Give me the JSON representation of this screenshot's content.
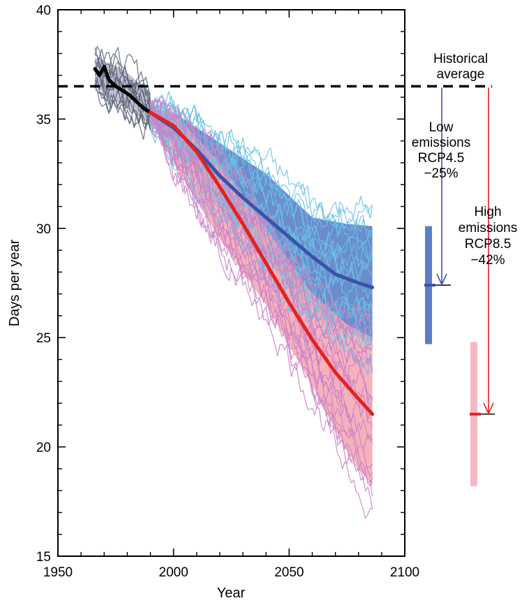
{
  "chart_data": {
    "type": "line",
    "xlabel": "Year",
    "ylabel": "Days per year",
    "xlim": [
      1950,
      2100
    ],
    "ylim": [
      15,
      40
    ],
    "x_ticks": [
      "1950",
      "2000",
      "2050",
      "2100"
    ],
    "y_ticks": [
      "15",
      "20",
      "25",
      "30",
      "35",
      "40"
    ],
    "historical_average": 36.5,
    "series": [
      {
        "key": "observed",
        "color": "#000000",
        "x": [
          1966,
          1968,
          1970,
          1972,
          1975,
          1978,
          1981,
          1984,
          1987,
          1990
        ],
        "y": [
          37.3,
          37.0,
          37.4,
          36.8,
          36.5,
          36.3,
          36.1,
          35.8,
          35.5,
          35.3
        ]
      },
      {
        "key": "rcp45_mean",
        "color": "#3a52a8",
        "x": [
          1990,
          2000,
          2010,
          2020,
          2030,
          2040,
          2050,
          2060,
          2070,
          2080,
          2086
        ],
        "y": [
          35.3,
          34.6,
          33.6,
          32.4,
          31.4,
          30.5,
          29.6,
          28.7,
          27.9,
          27.5,
          27.3
        ]
      },
      {
        "key": "rcp85_mean",
        "color": "#e52020",
        "x": [
          1990,
          2000,
          2010,
          2020,
          2030,
          2040,
          2050,
          2060,
          2070,
          2080,
          2086
        ],
        "y": [
          35.3,
          34.7,
          33.5,
          31.9,
          30.2,
          28.4,
          26.6,
          24.9,
          23.4,
          22.2,
          21.5
        ]
      }
    ],
    "ensembles": [
      {
        "key": "historical_models",
        "color": "#5b6478",
        "x": [
          1966,
          1990
        ]
      },
      {
        "key": "rcp45_models",
        "color": "#6ac3e6",
        "x": [
          1990,
          2086
        ]
      },
      {
        "key": "rcp85_models",
        "color": "#c983c7",
        "x": [
          1990,
          2086
        ]
      }
    ],
    "ranges": [
      {
        "key": "rcp45_range",
        "color": "#5b80c8",
        "x": [
          1990,
          2000,
          2020,
          2040,
          2060,
          2075,
          2086
        ],
        "upper": [
          35.5,
          35.3,
          33.9,
          32.5,
          30.5,
          30.2,
          30.1
        ],
        "lower": [
          35.0,
          33.8,
          31.0,
          28.5,
          26.3,
          25.2,
          24.8
        ]
      },
      {
        "key": "rcp85_range",
        "color": "#f5a9b6",
        "x": [
          1990,
          2000,
          2020,
          2040,
          2060,
          2075,
          2086
        ],
        "upper": [
          35.5,
          35.3,
          33.0,
          30.0,
          27.0,
          25.6,
          25.0
        ],
        "lower": [
          35.0,
          33.0,
          29.5,
          26.5,
          22.8,
          19.8,
          18.2
        ]
      },
      {
        "key": "historical_range",
        "color": "#b4b4c4",
        "x": [
          1966,
          1978,
          1990
        ],
        "upper": [
          37.8,
          37.3,
          36.2
        ],
        "lower": [
          36.5,
          35.6,
          34.8
        ]
      }
    ],
    "side_bars": [
      {
        "key": "rcp45",
        "color": "#5b80c8",
        "low": 24.7,
        "high": 30.1,
        "mean": 27.4,
        "arrow_color": "#3a52a8"
      },
      {
        "key": "rcp85",
        "color": "#f5b8c4",
        "low": 18.2,
        "high": 24.8,
        "mean": 21.5,
        "arrow_color": "#e52020"
      }
    ],
    "annotations": {
      "historical": [
        "Historical",
        "average"
      ],
      "low": [
        "Low",
        "emissions",
        "RCP4.5",
        "−25%"
      ],
      "high": [
        "High",
        "emissions",
        "RCP8.5",
        "−42%"
      ]
    }
  }
}
